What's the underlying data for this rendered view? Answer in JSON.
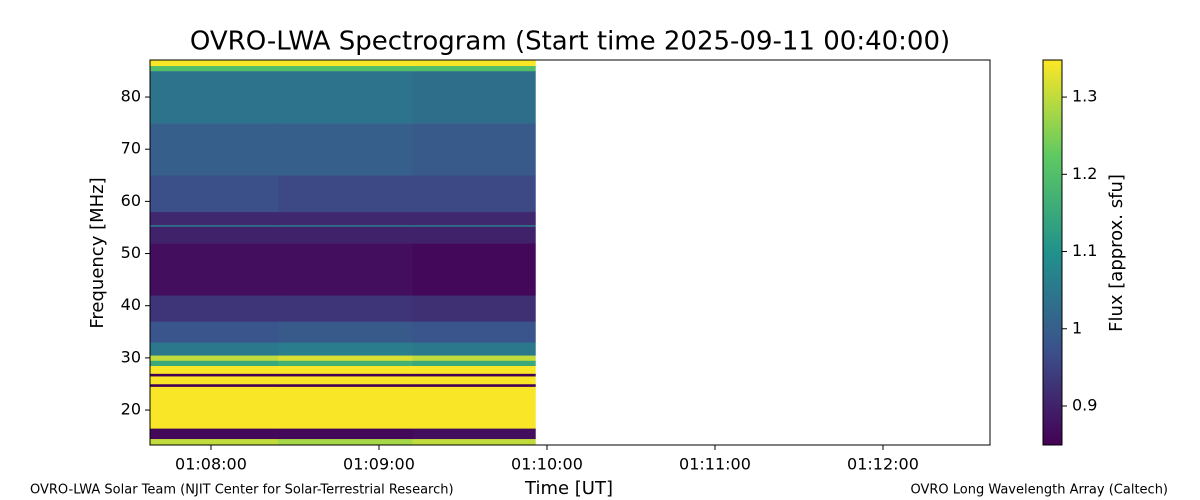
{
  "chart_data": {
    "type": "heatmap",
    "title": "OVRO-LWA Spectrogram (Start time 2025-09-11 00:40:00)",
    "xlabel": "Time [UT]",
    "ylabel": "Frequency [MHz]",
    "colorbar_label": "Flux [approx. sfu]",
    "colormap": "viridis",
    "footer_left": "OVRO-LWA Solar Team (NJIT Center for Solar-Terrestrial Research)",
    "footer_right": "OVRO Long Wavelength Array (Caltech)",
    "xlim": [
      67.637,
      72.637
    ],
    "xticks": [
      {
        "value": 68,
        "label": "01:08:00"
      },
      {
        "value": 69,
        "label": "01:09:00"
      },
      {
        "value": 70,
        "label": "01:10:00"
      },
      {
        "value": 71,
        "label": "01:11:00"
      },
      {
        "value": 72,
        "label": "01:12:00"
      }
    ],
    "ylim": [
      13.3,
      87.1
    ],
    "yticks": [
      20,
      30,
      40,
      50,
      60,
      70,
      80
    ],
    "clim": [
      0.8495,
      1.348
    ],
    "cticks": [
      0.9,
      1.0,
      1.1,
      1.2,
      1.3
    ],
    "x_edges": [
      67.637,
      68.4,
      69.2,
      69.93
    ],
    "y_edges": [
      13.3,
      14.5,
      16.5,
      24.5,
      25,
      26.5,
      27,
      28.5,
      29.5,
      30.5,
      33,
      37,
      42,
      52,
      55.2,
      55.5,
      58,
      65,
      75,
      85,
      86,
      87.1
    ],
    "values": [
      [
        1.3,
        1.28,
        1.3
      ],
      [
        0.86,
        0.86,
        0.87
      ],
      [
        1.345,
        1.345,
        1.345
      ],
      [
        0.85,
        0.85,
        0.85
      ],
      [
        1.345,
        1.345,
        1.345
      ],
      [
        0.85,
        0.85,
        0.85
      ],
      [
        1.345,
        1.345,
        1.345
      ],
      [
        1.15,
        1.17,
        1.15
      ],
      [
        1.3,
        1.32,
        1.3
      ],
      [
        1.05,
        1.06,
        1.05
      ],
      [
        0.98,
        0.99,
        0.98
      ],
      [
        0.93,
        0.93,
        0.92
      ],
      [
        0.87,
        0.87,
        0.86
      ],
      [
        0.9,
        0.9,
        0.9
      ],
      [
        1.05,
        1.05,
        1.05
      ],
      [
        0.91,
        0.91,
        0.91
      ],
      [
        0.97,
        0.96,
        0.96
      ],
      [
        1.0,
        1.0,
        0.99
      ],
      [
        1.04,
        1.04,
        1.03
      ],
      [
        1.2,
        1.2,
        1.2
      ],
      [
        1.345,
        1.345,
        1.345
      ]
    ]
  }
}
